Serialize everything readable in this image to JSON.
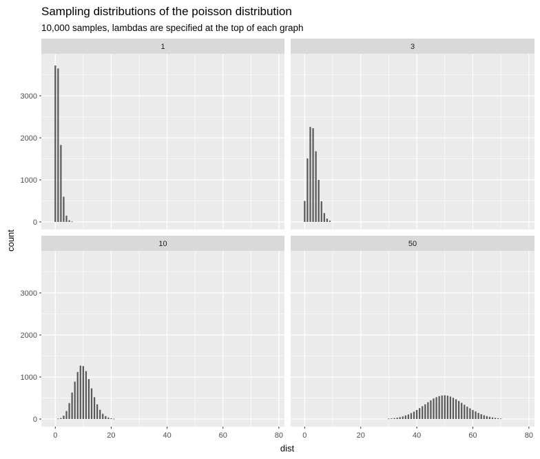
{
  "chart_data": {
    "type": "bar",
    "title": "Sampling distributions of the poisson distribution",
    "subtitle": "10,000 samples, lambdas are specified at the top of each graph",
    "xlabel": "dist",
    "ylabel": "count",
    "xlim": [
      -5,
      82
    ],
    "ylim": [
      -180,
      4000
    ],
    "x_ticks": [
      0,
      20,
      40,
      60,
      80
    ],
    "y_ticks": [
      0,
      1000,
      2000,
      3000
    ],
    "x_tick_labels": [
      "0",
      "20",
      "40",
      "60",
      "80"
    ],
    "y_tick_labels": [
      "0",
      "1000",
      "2000",
      "3000"
    ],
    "grid": true,
    "layout": "2x2 facets, shared axes",
    "colors": {
      "bar": "#595959",
      "panel": "#ebebeb",
      "grid": "#ffffff",
      "strip": "#d9d9d9"
    },
    "facets": [
      {
        "label": "1",
        "x": [
          0,
          1,
          2,
          3,
          4,
          5,
          6
        ],
        "values": [
          3720,
          3650,
          1830,
          600,
          150,
          40,
          10
        ]
      },
      {
        "label": "3",
        "x": [
          0,
          1,
          2,
          3,
          4,
          5,
          6,
          7,
          8,
          9
        ],
        "values": [
          500,
          1510,
          2260,
          2230,
          1680,
          1000,
          490,
          210,
          80,
          30
        ]
      },
      {
        "label": "10",
        "x": [
          1,
          2,
          3,
          4,
          5,
          6,
          7,
          8,
          9,
          10,
          11,
          12,
          13,
          14,
          15,
          16,
          17,
          18,
          19,
          20,
          21
        ],
        "values": [
          10,
          25,
          80,
          190,
          380,
          630,
          890,
          1120,
          1270,
          1260,
          1140,
          950,
          730,
          520,
          350,
          220,
          125,
          70,
          35,
          18,
          8
        ]
      },
      {
        "label": "50",
        "x": [
          30,
          31,
          32,
          33,
          34,
          35,
          36,
          37,
          38,
          39,
          40,
          41,
          42,
          43,
          44,
          45,
          46,
          47,
          48,
          49,
          50,
          51,
          52,
          53,
          54,
          55,
          56,
          57,
          58,
          59,
          60,
          61,
          62,
          63,
          64,
          65,
          66,
          67,
          68,
          69,
          70
        ],
        "values": [
          10,
          15,
          22,
          32,
          45,
          62,
          85,
          110,
          140,
          175,
          215,
          260,
          305,
          350,
          400,
          445,
          490,
          520,
          545,
          560,
          565,
          555,
          535,
          505,
          470,
          430,
          385,
          340,
          295,
          255,
          215,
          180,
          145,
          115,
          90,
          70,
          52,
          38,
          27,
          18,
          12
        ]
      }
    ]
  }
}
